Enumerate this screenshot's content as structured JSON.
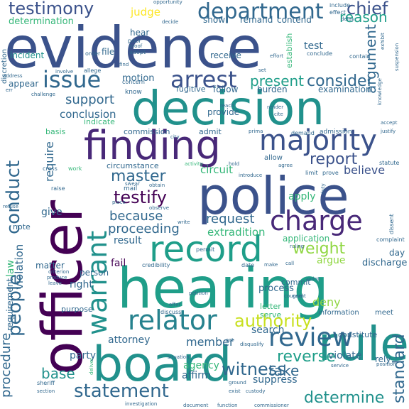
{
  "words": {
    "evidence": "evidence",
    "officer": "officer",
    "hearing": "hearing",
    "board": "board",
    "police": "police",
    "decision": "decision",
    "finding": "finding",
    "record": "record",
    "rule": "rule",
    "majority": "majority",
    "charge": "charge",
    "warrant": "warrant",
    "review": "review",
    "relator": "relator",
    "issue": "issue",
    "arrest": "arrest",
    "department": "department",
    "testimony": "testimony",
    "conduct": "conduct",
    "people": "people",
    "statement": "statement",
    "witness": "witness",
    "authority": "authority",
    "testify": "testify",
    "master": "master",
    "weight": "weight",
    "consider": "consider",
    "report": "report",
    "present": "present",
    "chief": "chief",
    "reason": "reason",
    "argument": "argument",
    "determine": "determine",
    "reverse": "reverse",
    "standard": "standard",
    "procedure": "procedure",
    "base": "base",
    "take": "take",
    "request": "request",
    "proceeding": "proceeding",
    "because": "because",
    "support": "support",
    "conclusion": "conclusion",
    "require": "require",
    "extradition": "extradition",
    "determination": "determination",
    "judge": "judge",
    "believe": "believe",
    "circuit": "circuit",
    "member": "member",
    "attorney": "attorney",
    "deny": "deny",
    "search": "search",
    "suppress": "suppress",
    "affirm": "affirm",
    "agency": "agency",
    "party": "party",
    "violate": "violate",
    "requirement": "requirement",
    "violation": "violation",
    "law": "law",
    "result": "result",
    "fail": "fail",
    "right": "right",
    "process": "process",
    "apply": "apply",
    "give": "give",
    "motion": "motion",
    "test": "test",
    "file": "file",
    "hear": "hear",
    "incident": "incident",
    "appear": "appear",
    "matter": "matter",
    "person": "person",
    "application": "application",
    "argue": "argue",
    "discharge": "discharge",
    "examination": "examination",
    "burden": "burden",
    "follow": "follow",
    "receive": "receive",
    "provide": "provide",
    "commission": "commission",
    "admit": "admit",
    "indicate": "indicate",
    "circumstance": "circumstance",
    "basis": "basis",
    "show": "show",
    "remand": "remand",
    "contend": "contend",
    "establish": "establish",
    "day": "day",
    "note": "note",
    "purpose": "purpose",
    "commit": "commit",
    "letter": "letter",
    "serve": "serve",
    "rely": "rely",
    "constitute": "constitute",
    "information": "information",
    "meet": "meet",
    "discretion": "discretion",
    "fugitive": "fugitive",
    "know": "know",
    "concern": "concern",
    "allow": "allow",
    "demand": "demand",
    "admission": "admission",
    "limit": "limit",
    "prove": "prove",
    "statute": "statute",
    "conclude": "conclude",
    "contain": "contain",
    "adopt": "adopt",
    "prior": "prior",
    "include": "include",
    "effect": "effect",
    "opportunity": "opportunity",
    "decide": "decide",
    "address": "address",
    "err": "err",
    "involve": "involve",
    "allege": "allege",
    "challenge": "challenge",
    "order": "order",
    "credibility": "credibility",
    "date": "date",
    "make": "make",
    "permit": "permit",
    "complaint": "complaint",
    "dissent": "dissent",
    "ruling": "ruling",
    "mail": "mail",
    "obtain": "obtain",
    "swear": "swear",
    "place": "place",
    "observe": "observe",
    "write": "write",
    "raise": "raise",
    "cross": "cross",
    "work": "work",
    "refuse": "refuse",
    "leave": "leave",
    "criterion": "criterion",
    "produce": "produce",
    "sheriff": "sheriff",
    "section": "section",
    "deliver": "deliver",
    "situation": "situation",
    "ground": "ground",
    "exist": "exist",
    "custody": "custody",
    "investigation": "investigation",
    "document": "document",
    "function": "function",
    "commissioner": "commissioner",
    "service": "service",
    "position": "position",
    "discuss": "discuss",
    "petition": "petition",
    "counsel": "counsel",
    "point": "point",
    "duty": "duty",
    "render": "render",
    "reach": "reach",
    "cite": "cite",
    "accept": "accept",
    "justify": "justify",
    "knowledge": "knowledge",
    "suspension": "suspension",
    "exhibit": "exhibit",
    "grant": "grant",
    "introduce": "introduce",
    "agree": "agree",
    "disqualify": "disqualify",
    "act": "act",
    "offer": "offer",
    "prima": "prima",
    "prove2": "proof",
    "activity": "activity",
    "effort": "effort",
    "delay": "delay",
    "find": "find",
    "city": "city",
    "set": "set",
    "call": "call",
    "hold": "hold"
  },
  "colors": {
    "background": "#ffffff",
    "palette": [
      "#440154",
      "#482878",
      "#3b528b",
      "#31688e",
      "#26828e",
      "#21918c",
      "#1f9e89",
      "#35b779",
      "#5ec962",
      "#90d743",
      "#c8e020",
      "#fde725"
    ]
  }
}
